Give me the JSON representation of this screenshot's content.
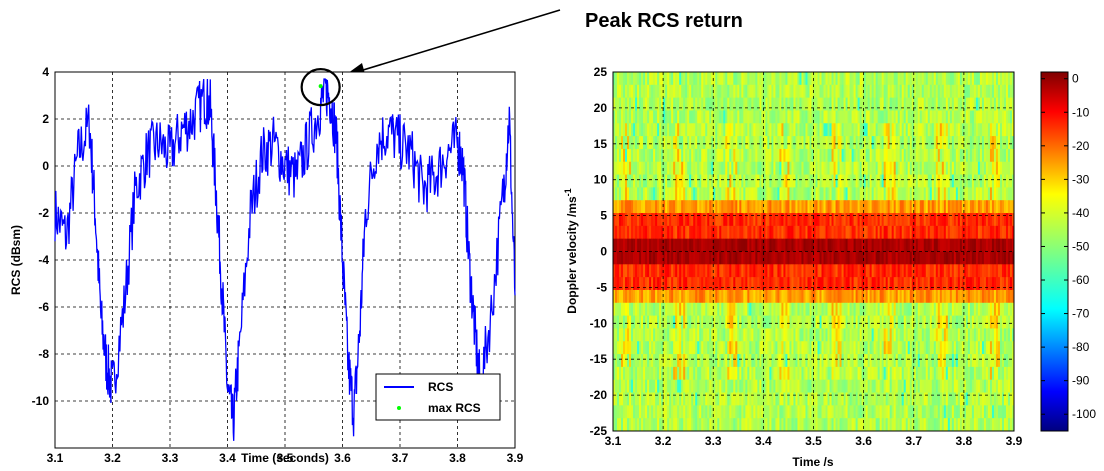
{
  "annotation": {
    "text": "Peak RCS return"
  },
  "chart_data": [
    {
      "type": "line",
      "xlabel": "Time (seconds)",
      "ylabel": "RCS (dBsm)",
      "xlim": [
        3.1,
        3.9
      ],
      "ylim": [
        -12,
        4
      ],
      "x_ticks": [
        "3.1",
        "3.2",
        "3.3",
        "3.4",
        "3.5",
        "3.6",
        "3.7",
        "3.8",
        "3.9"
      ],
      "y_ticks": [
        "4",
        "2",
        "0",
        "-2",
        "-4",
        "-6",
        "-8",
        "-10"
      ],
      "grid": true,
      "legend_position": "bottom-right",
      "series": [
        {
          "name": "RCS",
          "color": "#0000ff",
          "x": [
            3.1,
            3.12,
            3.14,
            3.16,
            3.17,
            3.18,
            3.19,
            3.2,
            3.22,
            3.24,
            3.26,
            3.28,
            3.3,
            3.32,
            3.34,
            3.36,
            3.37,
            3.38,
            3.39,
            3.4,
            3.41,
            3.42,
            3.44,
            3.46,
            3.48,
            3.5,
            3.52,
            3.54,
            3.56,
            3.57,
            3.58,
            3.59,
            3.6,
            3.61,
            3.62,
            3.63,
            3.64,
            3.66,
            3.68,
            3.7,
            3.72,
            3.74,
            3.76,
            3.78,
            3.8,
            3.81,
            3.82,
            3.83,
            3.84,
            3.86,
            3.88,
            3.89,
            3.9
          ],
          "values": [
            -2,
            -3,
            0.5,
            1.8,
            -2,
            -6.5,
            -8.5,
            -9.5,
            -6,
            -1,
            0.5,
            1,
            0.5,
            1.5,
            2,
            2.9,
            2.5,
            -1,
            -5,
            -9.5,
            -11,
            -8,
            -2,
            0.5,
            1,
            0,
            -0.5,
            1,
            2.4,
            3.3,
            2.8,
            1,
            -4,
            -8.5,
            -10.5,
            -7,
            -2,
            1,
            1.5,
            1,
            0.5,
            -1,
            -0.5,
            0.5,
            1,
            0,
            -4,
            -7,
            -9.5,
            -6,
            -1,
            2,
            -5.5
          ]
        },
        {
          "name": "max RCS",
          "color": "#00ff00",
          "x": [
            3.562
          ],
          "values": [
            3.4
          ]
        }
      ],
      "highlight_circle_at": {
        "x": 3.562,
        "y": 3.4
      }
    },
    {
      "type": "heatmap",
      "xlabel": "Time /s",
      "ylabel": "Doppler velocity /ms-1",
      "ylabel_parts": {
        "main": "Doppler velocity /ms",
        "sup": "-1"
      },
      "xlim": [
        3.1,
        3.9
      ],
      "ylim": [
        -25,
        25
      ],
      "x_ticks": [
        "3.1",
        "3.2",
        "3.3",
        "3.4",
        "3.5",
        "3.6",
        "3.7",
        "3.8",
        "3.9"
      ],
      "y_ticks": [
        "25",
        "20",
        "15",
        "10",
        "5",
        "0",
        "-5",
        "-10",
        "-15",
        "-20",
        "-25"
      ],
      "grid": true,
      "colorbar": {
        "range": [
          -105,
          2
        ],
        "ticks": [
          "0",
          "-10",
          "-20",
          "-30",
          "-40",
          "-50",
          "-60",
          "-70",
          "-80",
          "-90",
          "-100"
        ]
      },
      "description_values": {
        "center_band_dB": -2,
        "shoulder_dB": -25,
        "background_dB": -45
      }
    }
  ]
}
